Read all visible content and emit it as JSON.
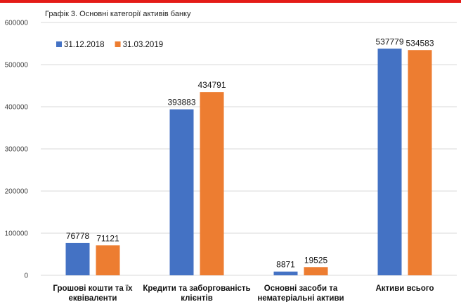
{
  "chart_data": {
    "type": "bar",
    "title": "Графік 3. Основні категорії активів банку",
    "categories": [
      [
        "Грошові кошти та їх",
        "еквіваленти"
      ],
      [
        "Кредити та заборгованість",
        "клієнтів"
      ],
      [
        "Основні засоби та",
        "нематеріальні активи"
      ],
      [
        "Активи всього"
      ]
    ],
    "series": [
      {
        "name": "31.12.2018",
        "color": "#4472c4",
        "values": [
          76778,
          393883,
          8871,
          537779
        ]
      },
      {
        "name": "31.03.2019",
        "color": "#ed7d31",
        "values": [
          71121,
          434791,
          19525,
          534583
        ]
      }
    ],
    "ylim": [
      0,
      600000
    ],
    "yticks": [
      "0",
      "100000",
      "200000",
      "300000",
      "400000",
      "500000",
      "600000"
    ],
    "grid": true,
    "legend_position": "top-left",
    "xlabel": "",
    "ylabel": ""
  }
}
